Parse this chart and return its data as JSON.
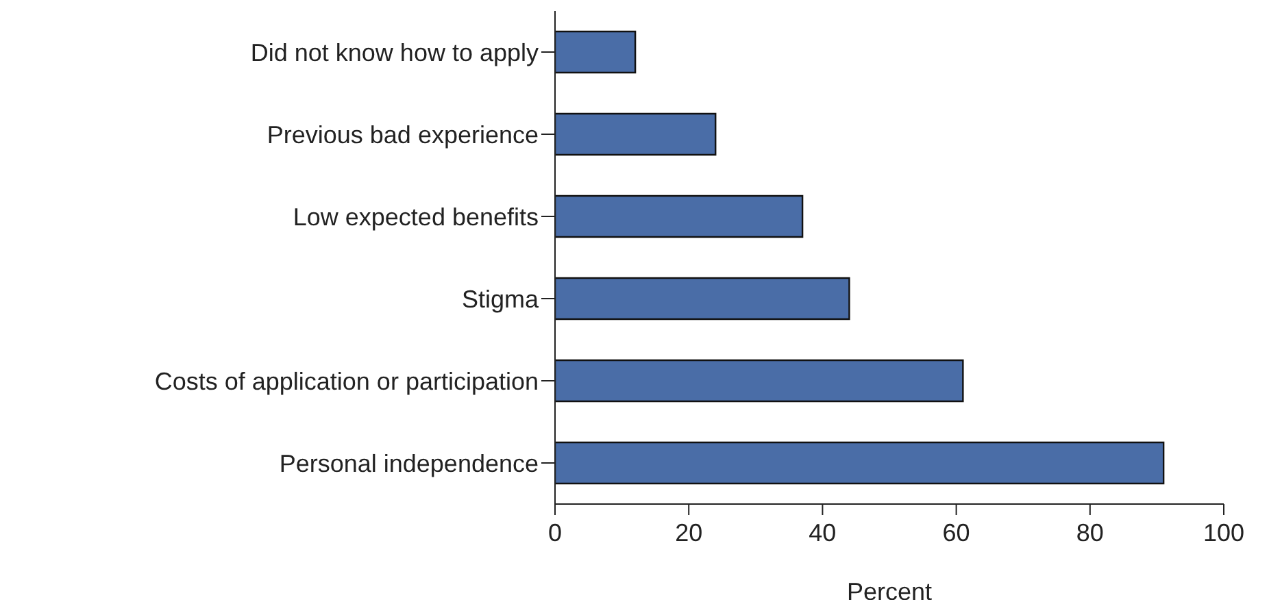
{
  "chart_data": {
    "type": "bar",
    "orientation": "horizontal",
    "categories": [
      "Did not know how to apply",
      "Previous bad experience",
      "Low expected benefits",
      "Stigma",
      "Costs of application or participation",
      "Personal independence"
    ],
    "values": [
      12,
      24,
      37,
      44,
      61,
      91
    ],
    "color": "#4a6da7",
    "xlabel": "Percent",
    "xlim": [
      0,
      100
    ],
    "xticks": [
      0,
      20,
      40,
      60,
      80,
      100
    ],
    "grid": false,
    "legend": false
  }
}
